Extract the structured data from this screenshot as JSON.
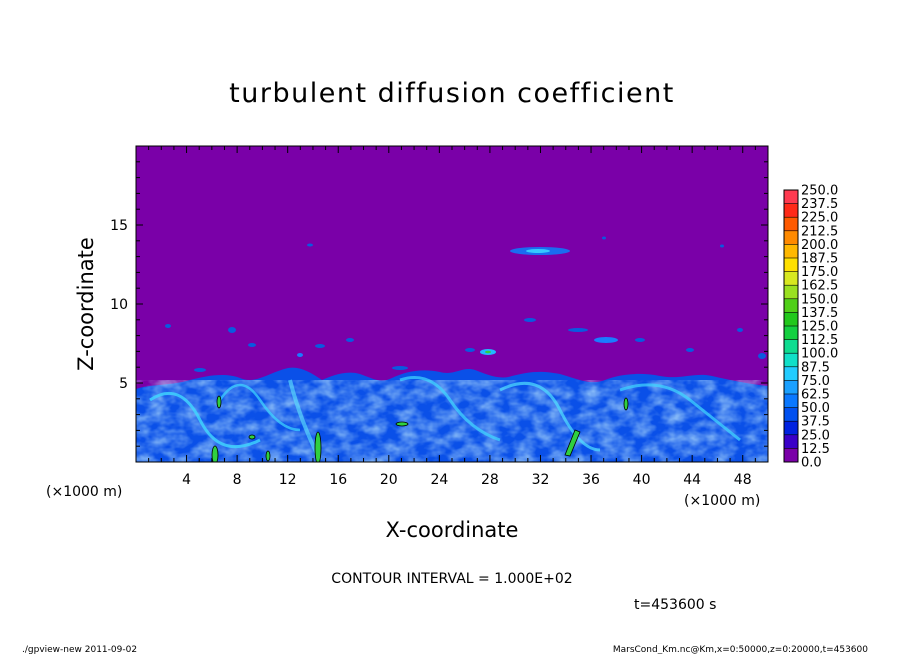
{
  "chart_data": {
    "type": "heatmap",
    "title": "turbulent diffusion coefficient",
    "xlabel": "X-coordinate",
    "ylabel": "Z-coordinate",
    "x_unit_label": "(×1000 m)",
    "x_unit_label_right": "(×1000 m)",
    "xlim": [
      0,
      50
    ],
    "ylim": [
      0,
      20
    ],
    "x_ticks": [
      4,
      8,
      12,
      16,
      20,
      24,
      28,
      32,
      36,
      40,
      44,
      48
    ],
    "y_ticks": [
      5,
      10,
      15
    ],
    "colorbar": {
      "levels": [
        "0.0",
        "12.5",
        "25.0",
        "37.5",
        "50.0",
        "62.5",
        "75.0",
        "87.5",
        "100.0",
        "112.5",
        "125.0",
        "137.5",
        "150.0",
        "162.5",
        "175.0",
        "187.5",
        "200.0",
        "212.5",
        "225.0",
        "237.5",
        "250.0"
      ],
      "colors": [
        "#7a00a8",
        "#3a00c8",
        "#0022e0",
        "#0050f0",
        "#0a78ff",
        "#1aa0ff",
        "#22ccff",
        "#10e0c8",
        "#0edc90",
        "#14d040",
        "#22c81c",
        "#50d018",
        "#9ae020",
        "#d8e820",
        "#ffe000",
        "#ffb800",
        "#ff8a00",
        "#ff5a00",
        "#ff2a18",
        "#ff3a50",
        "#ff7a8a"
      ]
    },
    "background_level": "0.0",
    "contour_interval": "CONTOUR INTERVAL = 1.000E+02",
    "time_label": "t=453600 s",
    "footer_left": "./gpview-new  2011-09-02",
    "footer_right": "MarsCond_Km.nc@Km,x=0:50000,z=0:20000,t=453600",
    "grid": false
  }
}
